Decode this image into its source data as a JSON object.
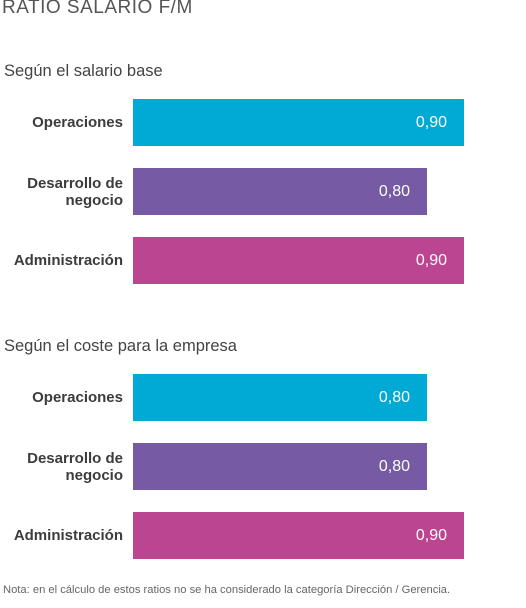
{
  "title": "RATIO SALARIO F/M",
  "note": "Nota: en el cálculo de estos ratios no se ha considerado la categoría Dirección / Gerencia.",
  "colors": {
    "Operaciones": "#00aad4",
    "Desarrollo de negocio": "#765ba4",
    "Administración": "#bb4590"
  },
  "chart_data": [
    {
      "type": "bar",
      "orientation": "horizontal",
      "title": "Según el salario base",
      "categories": [
        "Operaciones",
        "Desarrollo de negocio",
        "Administración"
      ],
      "values": [
        0.9,
        0.8,
        0.9
      ],
      "value_labels": [
        "0,90",
        "0,80",
        "0,90"
      ]
    },
    {
      "type": "bar",
      "orientation": "horizontal",
      "title": "Según el coste para la empresa",
      "categories": [
        "Operaciones",
        "Desarrollo de negocio",
        "Administración"
      ],
      "values": [
        0.8,
        0.8,
        0.9
      ],
      "value_labels": [
        "0,80",
        "0,80",
        "0,90"
      ]
    }
  ]
}
